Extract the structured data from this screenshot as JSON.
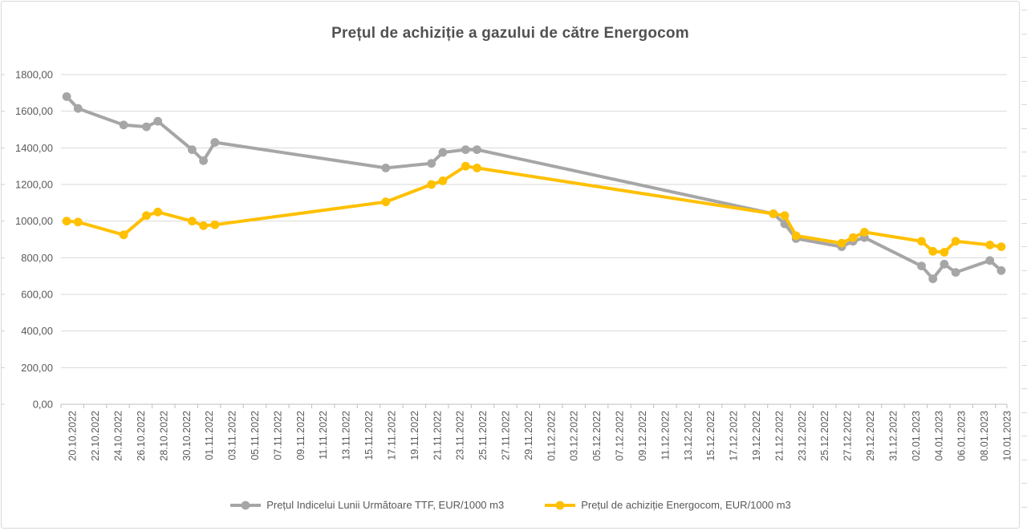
{
  "chart_data": {
    "type": "line",
    "title": "Prețul de achiziție a gazului de către Energocom",
    "xlabel": "",
    "ylabel": "",
    "ylim": [
      0,
      1800
    ],
    "y_tick_step": 200,
    "grid": "horizontal",
    "legend_position": "bottom",
    "y_tick_labels": [
      "0,00",
      "200,00",
      "400,00",
      "600,00",
      "800,00",
      "1000,00",
      "1200,00",
      "1400,00",
      "1600,00",
      "1800,00"
    ],
    "x_tick_labels": [
      "20.10.2022",
      "22.10.2022",
      "24.10.2022",
      "26.10.2022",
      "28.10.2022",
      "30.10.2022",
      "01.11.2022",
      "03.11.2022",
      "05.11.2022",
      "07.11.2022",
      "09.11.2022",
      "11.11.2022",
      "13.11.2022",
      "15.11.2022",
      "17.11.2022",
      "19.11.2022",
      "21.11.2022",
      "23.11.2022",
      "25.11.2022",
      "27.11.2022",
      "29.11.2022",
      "01.12.2022",
      "03.12.2022",
      "05.12.2022",
      "07.12.2022",
      "09.12.2022",
      "11.12.2022",
      "13.12.2022",
      "15.12.2022",
      "17.12.2022",
      "19.12.2022",
      "21.12.2022",
      "23.12.2022",
      "25.12.2022",
      "27.12.2022",
      "29.12.2022",
      "31.12.2022",
      "02.01.2023",
      "04.01.2023",
      "06.01.2023",
      "08.01.2023",
      "10.01.2023"
    ],
    "series": [
      {
        "name": "Prețul Indicelui Lunii Următoare TTF,  EUR/1000 m3",
        "color": "#a6a6a6",
        "points": [
          {
            "date": "20.10.2022",
            "value": 1680
          },
          {
            "date": "21.10.2022",
            "value": 1615
          },
          {
            "date": "25.10.2022",
            "value": 1525
          },
          {
            "date": "27.10.2022",
            "value": 1515
          },
          {
            "date": "28.10.2022",
            "value": 1545
          },
          {
            "date": "31.10.2022",
            "value": 1390
          },
          {
            "date": "01.11.2022",
            "value": 1330
          },
          {
            "date": "02.11.2022",
            "value": 1430
          },
          {
            "date": "17.11.2022",
            "value": 1290
          },
          {
            "date": "21.11.2022",
            "value": 1315
          },
          {
            "date": "22.11.2022",
            "value": 1375
          },
          {
            "date": "24.11.2022",
            "value": 1390
          },
          {
            "date": "25.11.2022",
            "value": 1390
          },
          {
            "date": "21.12.2022",
            "value": 1040
          },
          {
            "date": "22.12.2022",
            "value": 985
          },
          {
            "date": "23.12.2022",
            "value": 905
          },
          {
            "date": "27.12.2022",
            "value": 860
          },
          {
            "date": "28.12.2022",
            "value": 890
          },
          {
            "date": "29.12.2022",
            "value": 910
          },
          {
            "date": "03.01.2023",
            "value": 755
          },
          {
            "date": "04.01.2023",
            "value": 685
          },
          {
            "date": "05.01.2023",
            "value": 765
          },
          {
            "date": "06.01.2023",
            "value": 720
          },
          {
            "date": "09.01.2023",
            "value": 785
          },
          {
            "date": "10.01.2023",
            "value": 730
          }
        ]
      },
      {
        "name": "Prețul de achiziție Energocom, EUR/1000 m3",
        "color": "#ffc000",
        "points": [
          {
            "date": "20.10.2022",
            "value": 1000
          },
          {
            "date": "21.10.2022",
            "value": 995
          },
          {
            "date": "25.10.2022",
            "value": 925
          },
          {
            "date": "27.10.2022",
            "value": 1030
          },
          {
            "date": "28.10.2022",
            "value": 1050
          },
          {
            "date": "31.10.2022",
            "value": 1000
          },
          {
            "date": "01.11.2022",
            "value": 975
          },
          {
            "date": "02.11.2022",
            "value": 980
          },
          {
            "date": "17.11.2022",
            "value": 1105
          },
          {
            "date": "21.11.2022",
            "value": 1200
          },
          {
            "date": "22.11.2022",
            "value": 1220
          },
          {
            "date": "24.11.2022",
            "value": 1300
          },
          {
            "date": "25.11.2022",
            "value": 1290
          },
          {
            "date": "21.12.2022",
            "value": 1040
          },
          {
            "date": "22.12.2022",
            "value": 1030
          },
          {
            "date": "23.12.2022",
            "value": 920
          },
          {
            "date": "27.12.2022",
            "value": 880
          },
          {
            "date": "28.12.2022",
            "value": 910
          },
          {
            "date": "29.12.2022",
            "value": 940
          },
          {
            "date": "03.01.2023",
            "value": 890
          },
          {
            "date": "04.01.2023",
            "value": 835
          },
          {
            "date": "05.01.2023",
            "value": 830
          },
          {
            "date": "06.01.2023",
            "value": 890
          },
          {
            "date": "09.01.2023",
            "value": 870
          },
          {
            "date": "10.01.2023",
            "value": 860
          }
        ]
      }
    ]
  }
}
